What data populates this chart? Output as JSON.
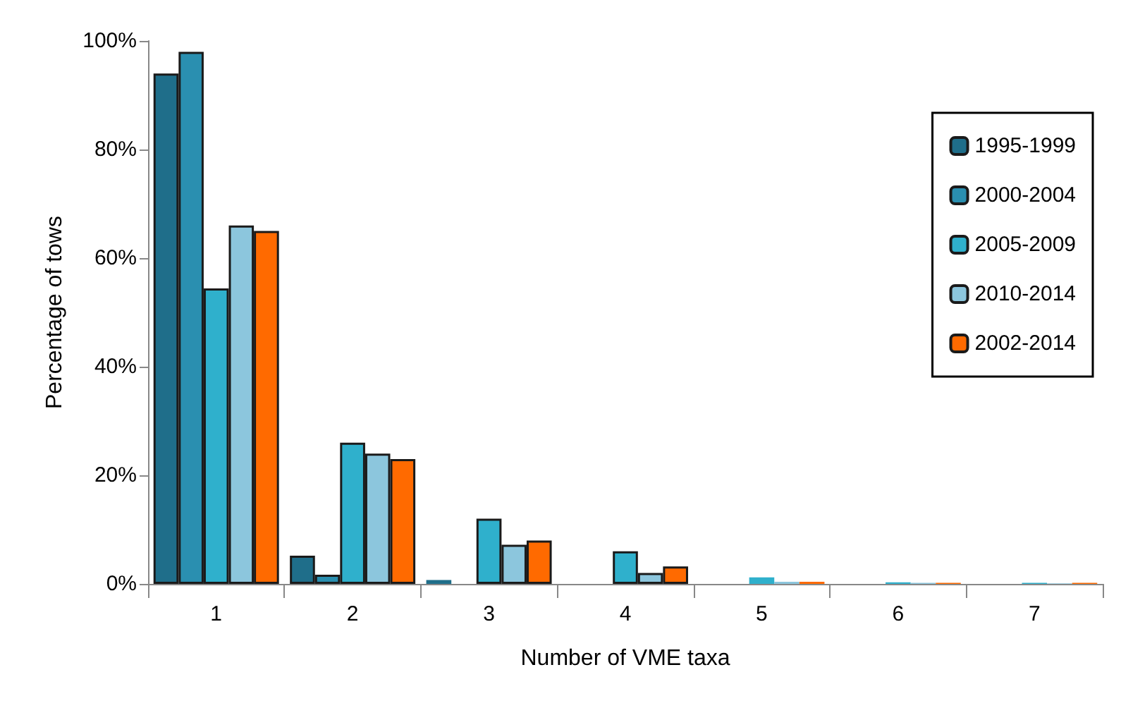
{
  "chart_data": {
    "type": "bar",
    "xlabel": "Number of VME taxa",
    "ylabel": "Percentage of tows",
    "categories": [
      "1",
      "2",
      "3",
      "4",
      "5",
      "6",
      "7"
    ],
    "series": [
      {
        "name": "1995-1999",
        "color": "#1f6e8a",
        "values": [
          94,
          5.2,
          0.7,
          0,
          0,
          0,
          0
        ]
      },
      {
        "name": "2000-2004",
        "color": "#2a8fb0",
        "values": [
          98,
          1.7,
          0,
          0,
          0,
          0,
          0
        ]
      },
      {
        "name": "2005-2009",
        "color": "#2fb0cc",
        "values": [
          54.4,
          26,
          12,
          6,
          1.2,
          0.3,
          0.2
        ]
      },
      {
        "name": "2010-2014",
        "color": "#8cc6dd",
        "values": [
          66,
          24,
          7.2,
          2,
          0.4,
          0.2,
          0.1
        ]
      },
      {
        "name": "2002-2014",
        "color": "#ff6a00",
        "values": [
          65,
          23,
          8,
          3.2,
          0.4,
          0.2,
          0.2
        ]
      }
    ],
    "ylim": [
      0,
      100
    ],
    "yticks": [
      {
        "value": 0,
        "label": "0%"
      },
      {
        "value": 20,
        "label": "20%"
      },
      {
        "value": 40,
        "label": "40%"
      },
      {
        "value": 60,
        "label": "60%"
      },
      {
        "value": 80,
        "label": "80%"
      },
      {
        "value": 100,
        "label": "100%"
      }
    ],
    "grid": false,
    "legend": "right"
  }
}
